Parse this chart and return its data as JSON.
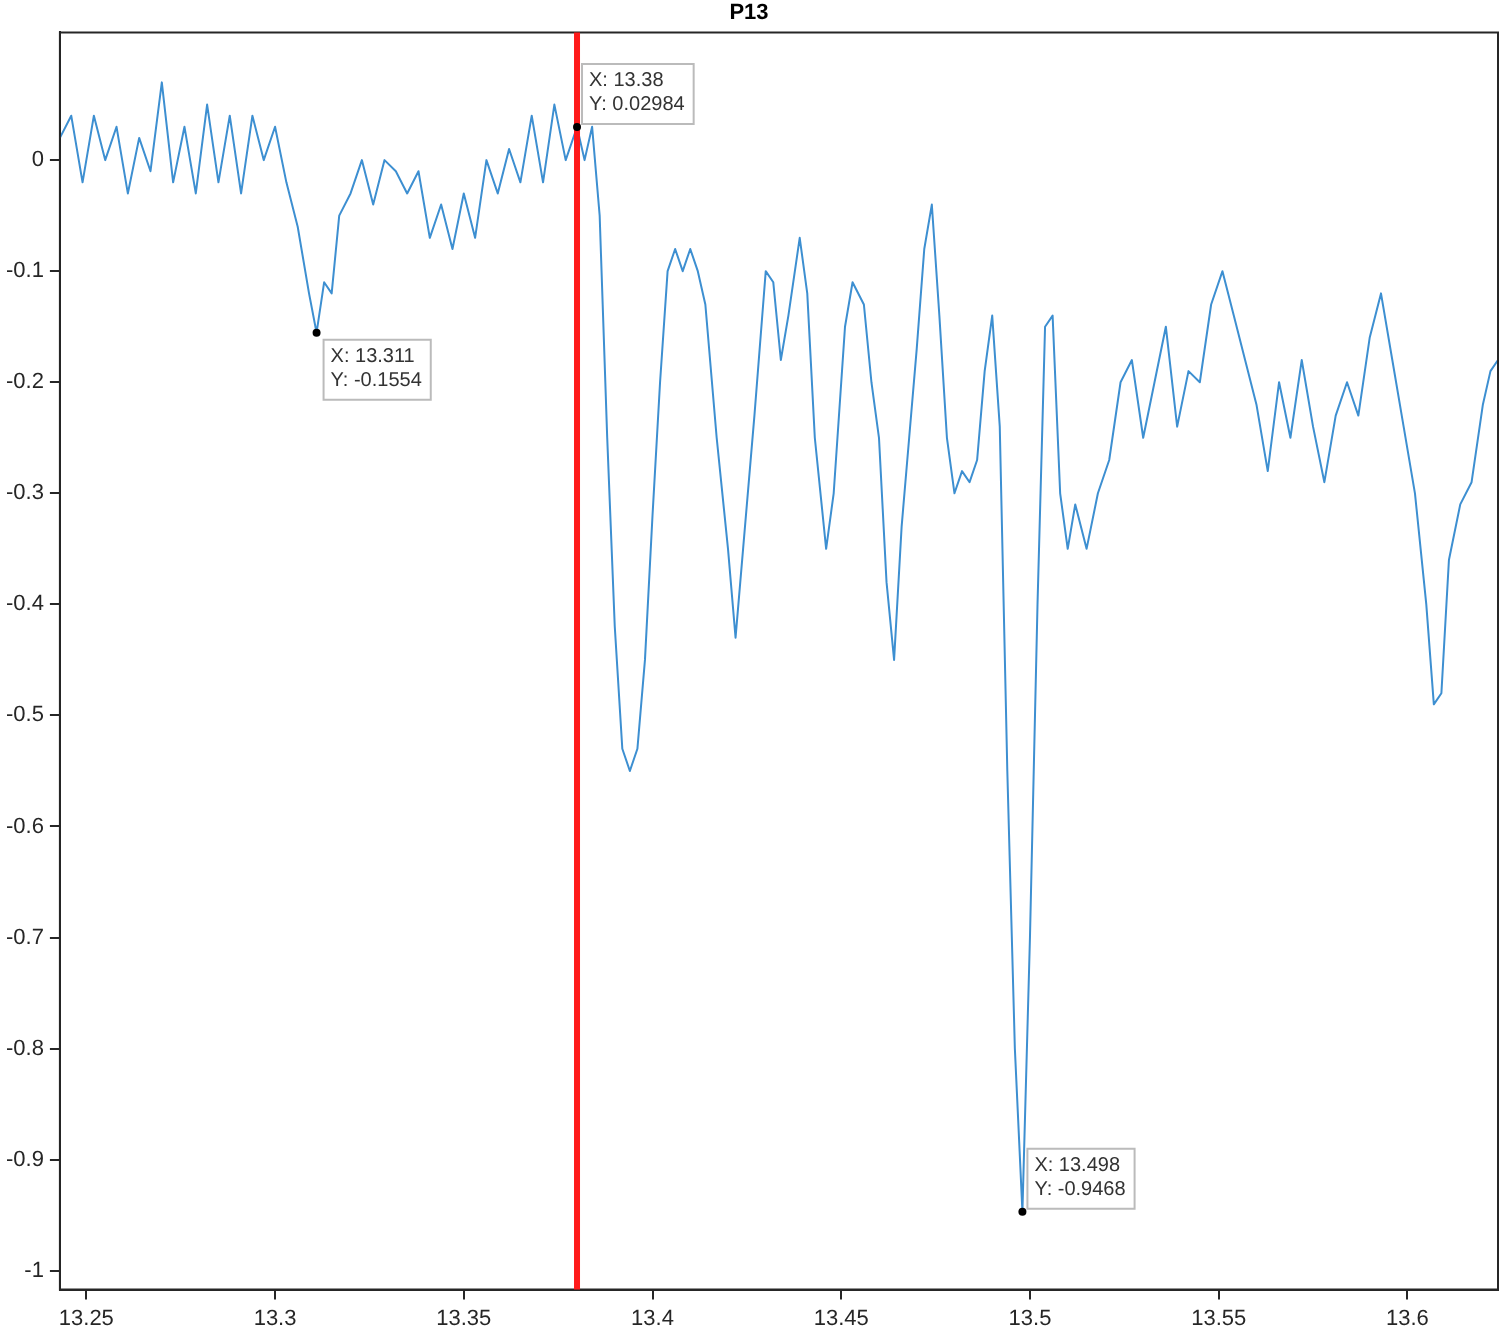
{
  "chart_data": {
    "type": "line",
    "title": "P13",
    "x": [
      13.243,
      13.246,
      13.249,
      13.252,
      13.255,
      13.258,
      13.261,
      13.264,
      13.267,
      13.27,
      13.273,
      13.276,
      13.279,
      13.282,
      13.285,
      13.288,
      13.291,
      13.294,
      13.297,
      13.3,
      13.303,
      13.306,
      13.309,
      13.311,
      13.313,
      13.315,
      13.317,
      13.32,
      13.323,
      13.326,
      13.329,
      13.332,
      13.335,
      13.338,
      13.341,
      13.344,
      13.347,
      13.35,
      13.353,
      13.356,
      13.359,
      13.362,
      13.365,
      13.368,
      13.371,
      13.374,
      13.377,
      13.38,
      13.382,
      13.384,
      13.386,
      13.388,
      13.39,
      13.392,
      13.394,
      13.396,
      13.398,
      13.4,
      13.402,
      13.404,
      13.406,
      13.408,
      13.41,
      13.412,
      13.414,
      13.417,
      13.42,
      13.422,
      13.424,
      13.427,
      13.43,
      13.432,
      13.434,
      13.436,
      13.439,
      13.441,
      13.443,
      13.446,
      13.448,
      13.451,
      13.453,
      13.456,
      13.458,
      13.46,
      13.462,
      13.464,
      13.466,
      13.468,
      13.47,
      13.472,
      13.474,
      13.476,
      13.478,
      13.48,
      13.482,
      13.484,
      13.486,
      13.488,
      13.49,
      13.492,
      13.494,
      13.496,
      13.498,
      13.5,
      13.502,
      13.504,
      13.506,
      13.508,
      13.51,
      13.512,
      13.515,
      13.518,
      13.521,
      13.524,
      13.527,
      13.53,
      13.533,
      13.536,
      13.539,
      13.542,
      13.545,
      13.548,
      13.551,
      13.554,
      13.557,
      13.56,
      13.563,
      13.566,
      13.569,
      13.572,
      13.575,
      13.578,
      13.581,
      13.584,
      13.587,
      13.59,
      13.593,
      13.596,
      13.599,
      13.602,
      13.605,
      13.607,
      13.609,
      13.611,
      13.614,
      13.617,
      13.62,
      13.622,
      13.624
    ],
    "series": [
      {
        "color": "#3d8fd1",
        "values": [
          0.02,
          0.04,
          -0.02,
          0.04,
          0.0,
          0.03,
          -0.03,
          0.02,
          -0.01,
          0.07,
          -0.02,
          0.03,
          -0.03,
          0.05,
          -0.02,
          0.04,
          -0.03,
          0.04,
          0.0,
          0.03,
          -0.02,
          -0.06,
          -0.12,
          -0.1554,
          -0.11,
          -0.12,
          -0.05,
          -0.03,
          0.0,
          -0.04,
          0.0,
          -0.01,
          -0.03,
          -0.01,
          -0.07,
          -0.04,
          -0.08,
          -0.03,
          -0.07,
          0.0,
          -0.03,
          0.01,
          -0.02,
          0.04,
          -0.02,
          0.05,
          0.0,
          0.02984,
          0.0,
          0.03,
          -0.05,
          -0.25,
          -0.42,
          -0.53,
          -0.55,
          -0.53,
          -0.45,
          -0.32,
          -0.2,
          -0.1,
          -0.08,
          -0.1,
          -0.08,
          -0.1,
          -0.13,
          -0.25,
          -0.35,
          -0.43,
          -0.35,
          -0.23,
          -0.1,
          -0.11,
          -0.18,
          -0.14,
          -0.07,
          -0.12,
          -0.25,
          -0.35,
          -0.3,
          -0.15,
          -0.11,
          -0.13,
          -0.2,
          -0.25,
          -0.38,
          -0.45,
          -0.33,
          -0.25,
          -0.17,
          -0.08,
          -0.04,
          -0.14,
          -0.25,
          -0.3,
          -0.28,
          -0.29,
          -0.27,
          -0.19,
          -0.14,
          -0.24,
          -0.55,
          -0.8,
          -0.9468,
          -0.7,
          -0.4,
          -0.15,
          -0.14,
          -0.3,
          -0.35,
          -0.31,
          -0.35,
          -0.3,
          -0.27,
          -0.2,
          -0.18,
          -0.25,
          -0.2,
          -0.15,
          -0.24,
          -0.19,
          -0.2,
          -0.13,
          -0.1,
          -0.14,
          -0.18,
          -0.22,
          -0.28,
          -0.2,
          -0.25,
          -0.18,
          -0.24,
          -0.29,
          -0.23,
          -0.2,
          -0.23,
          -0.16,
          -0.12,
          -0.18,
          -0.24,
          -0.3,
          -0.4,
          -0.49,
          -0.48,
          -0.36,
          -0.31,
          -0.29,
          -0.22,
          -0.19,
          -0.18
        ]
      }
    ],
    "xlim": [
      13.243,
      13.624
    ],
    "xticks": [
      13.25,
      13.3,
      13.35,
      13.4,
      13.45,
      13.5,
      13.55,
      13.6
    ],
    "ylim": [
      -1.017,
      0.115
    ],
    "yticks": [
      -1,
      -0.9,
      -0.8,
      -0.7,
      -0.6,
      -0.5,
      -0.4,
      -0.3,
      -0.2,
      -0.1,
      0
    ],
    "ref_lines": [
      {
        "axis": "x",
        "value": 13.38,
        "color": "#ff1a1a"
      }
    ],
    "annotations": [
      {
        "text": "X: 13.311\nY: -0.1554",
        "x": 13.311,
        "y": -0.1554
      },
      {
        "text": "X: 13.38\nY: 0.02984",
        "x": 13.38,
        "y": 0.02984
      },
      {
        "text": "X: 13.498\nY: -0.9468",
        "x": 13.498,
        "y": -0.9468
      }
    ],
    "grid": false,
    "legend": false,
    "marker": "none",
    "line_style": "solid"
  }
}
